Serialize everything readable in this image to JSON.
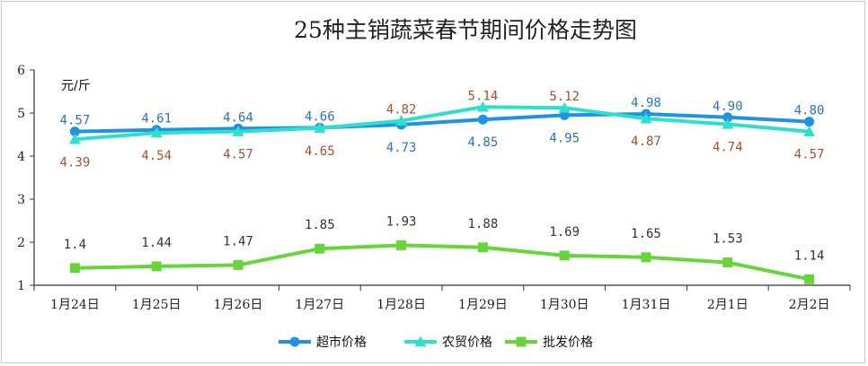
{
  "chart_data": {
    "type": "line",
    "title": "25种主销蔬菜春节期间价格走势图",
    "unit_label": "元/斤",
    "categories": [
      "1月24日",
      "1月25日",
      "1月26日",
      "1月27日",
      "1月28日",
      "1月29日",
      "1月30日",
      "1月31日",
      "2月1日",
      "2月2日"
    ],
    "ylim": [
      1,
      6
    ],
    "yticks": [
      1,
      2,
      3,
      4,
      5,
      6
    ],
    "grid": false,
    "legend_position": "bottom",
    "series": [
      {
        "name": "超市价格",
        "color": "#1f93e0",
        "label_color": "#2e6fc0",
        "marker": "circle",
        "values": [
          4.57,
          4.61,
          4.64,
          4.66,
          4.73,
          4.85,
          4.95,
          4.98,
          4.9,
          4.8
        ],
        "labels": [
          "4.57",
          "4.61",
          "4.64",
          "4.66",
          "4.73",
          "4.85",
          "4.95",
          "4.98",
          "4.90",
          "4.80"
        ]
      },
      {
        "name": "农贸价格",
        "color": "#2ee0cc",
        "label_color": "#a0522d",
        "marker": "triangle",
        "values": [
          4.39,
          4.54,
          4.57,
          4.65,
          4.82,
          5.14,
          5.12,
          4.87,
          4.74,
          4.57
        ],
        "labels": [
          "4.39",
          "4.54",
          "4.57",
          "4.65",
          "4.82",
          "5.14",
          "5.12",
          "4.87",
          "4.74",
          "4.57"
        ]
      },
      {
        "name": "批发价格",
        "color": "#66d43a",
        "label_color": "#333333",
        "marker": "square",
        "values": [
          1.4,
          1.44,
          1.47,
          1.85,
          1.93,
          1.88,
          1.69,
          1.65,
          1.53,
          1.14
        ],
        "labels": [
          "1.4",
          "1.44",
          "1.47",
          "1.85",
          "1.93",
          "1.88",
          "1.69",
          "1.65",
          "1.53",
          "1.14"
        ]
      }
    ]
  }
}
